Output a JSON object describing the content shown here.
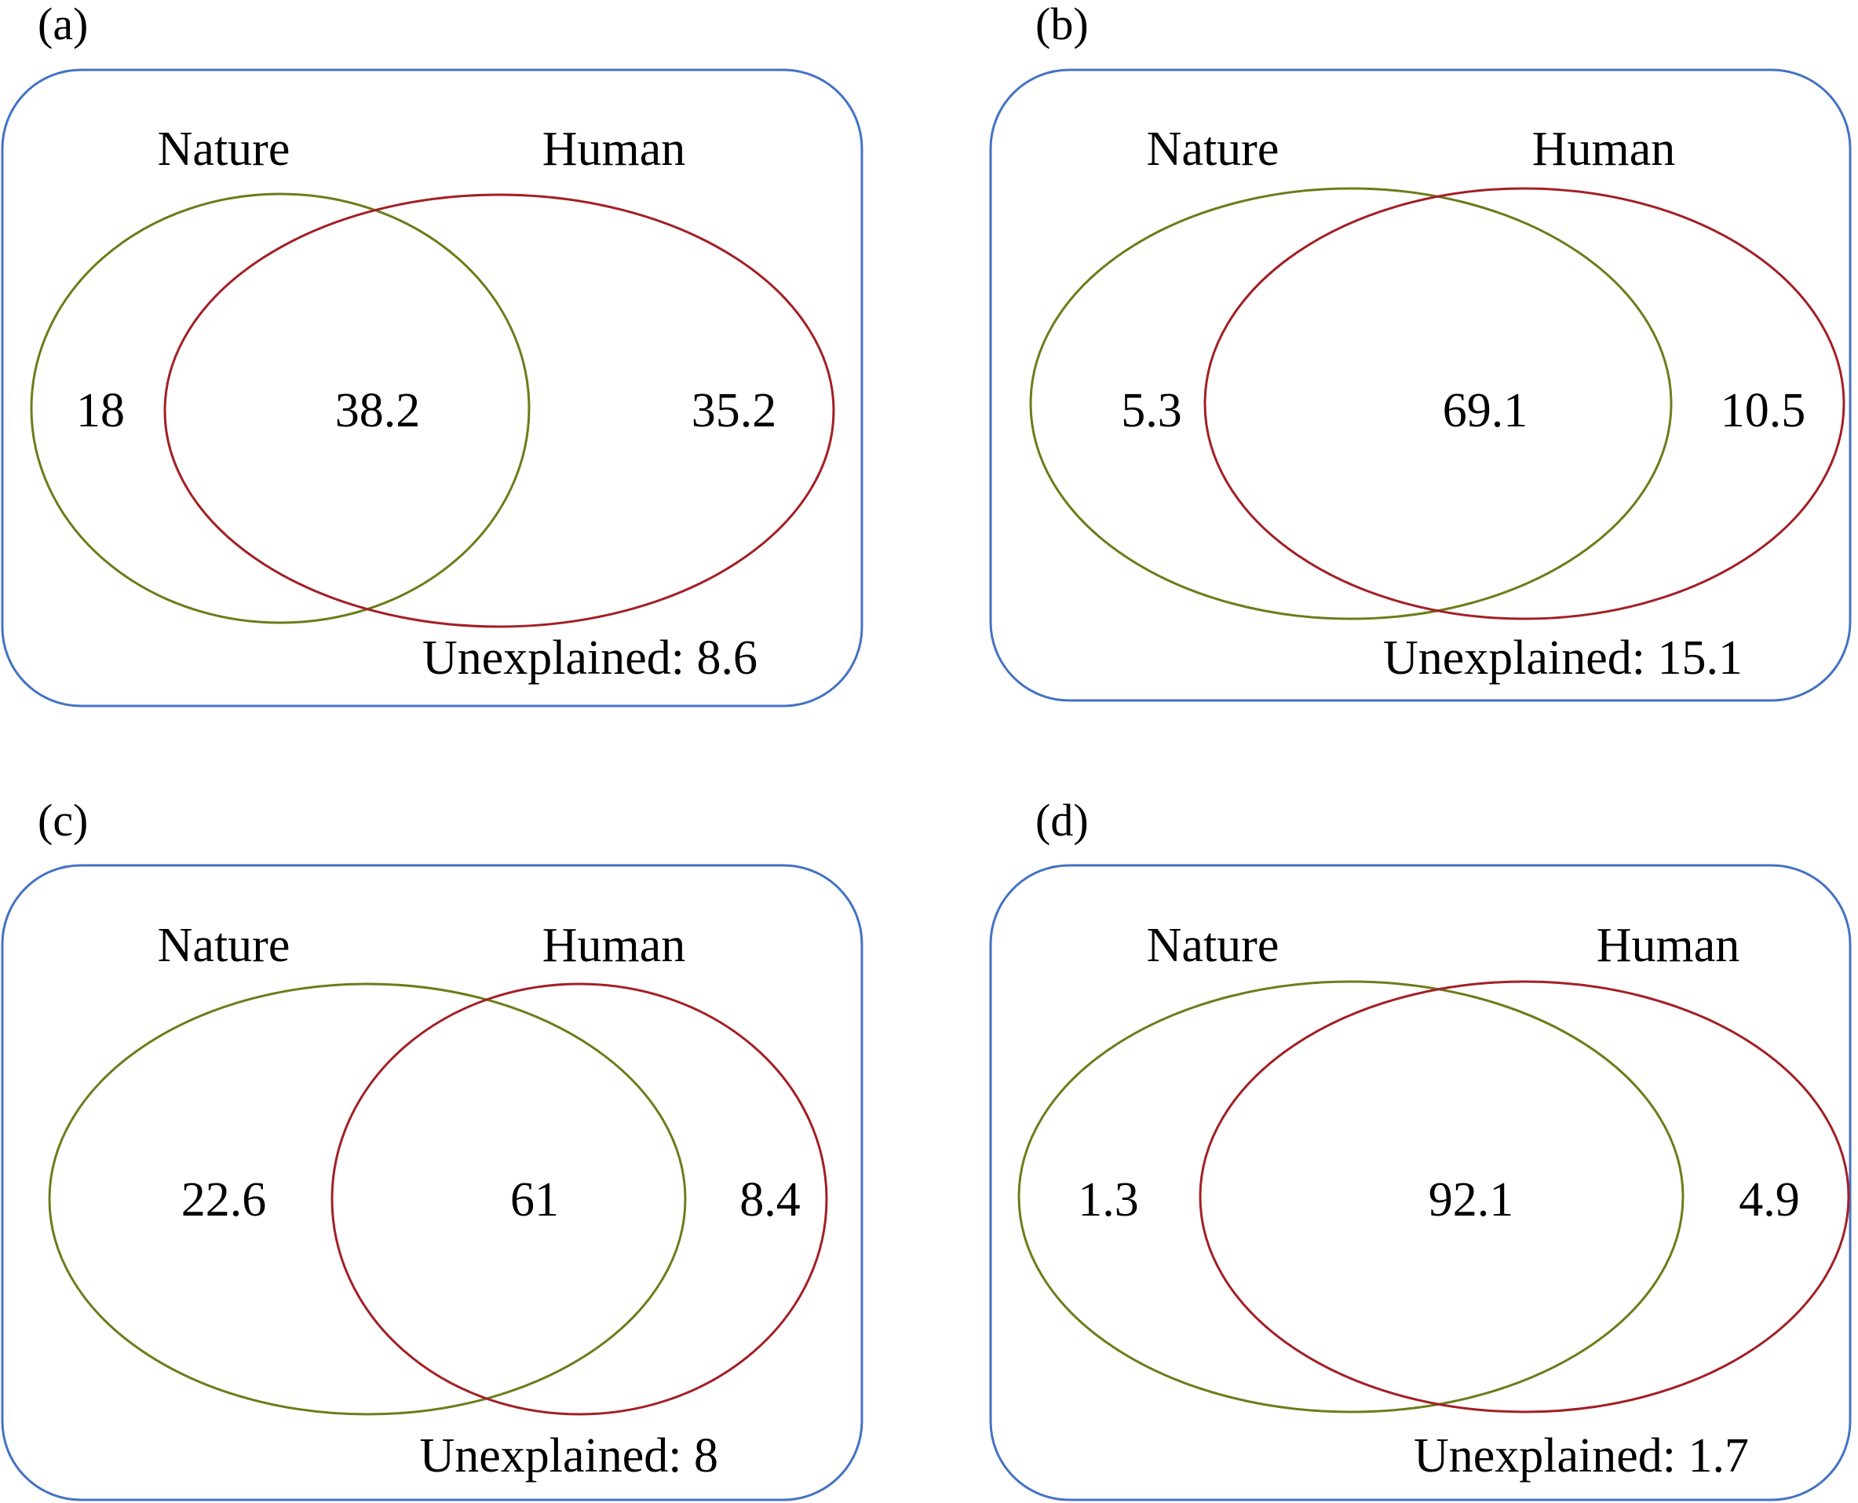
{
  "colors": {
    "frame": "#4472c4",
    "nature": "#6b7d1a",
    "human": "#a31f26",
    "text": "#000000"
  },
  "panels": [
    {
      "label": "(a)",
      "set_a": "Nature",
      "set_b": "Human",
      "nature_only": "18",
      "overlap": "38.2",
      "human_only": "35.2",
      "unexplained": "Unexplained: 8.6"
    },
    {
      "label": "(b)",
      "set_a": "Nature",
      "set_b": "Human",
      "nature_only": "5.3",
      "overlap": "69.1",
      "human_only": "10.5",
      "unexplained": "Unexplained: 15.1"
    },
    {
      "label": "(c)",
      "set_a": "Nature",
      "set_b": "Human",
      "nature_only": "22.6",
      "overlap": "61",
      "human_only": "8.4",
      "unexplained": "Unexplained: 8"
    },
    {
      "label": "(d)",
      "set_a": "Nature",
      "set_b": "Human",
      "nature_only": "1.3",
      "overlap": "92.1",
      "human_only": "4.9",
      "unexplained": "Unexplained: 1.7"
    }
  ]
}
